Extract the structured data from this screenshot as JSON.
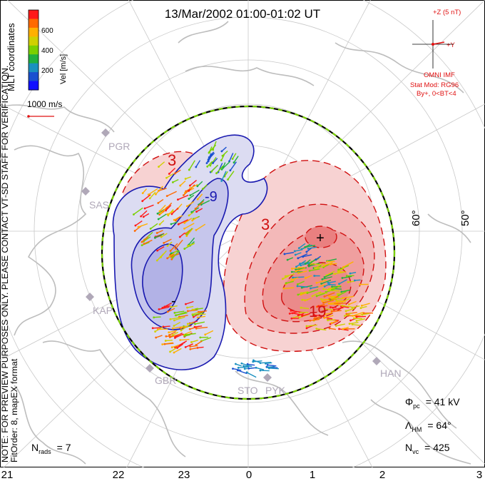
{
  "title": "13/Mar/2002 01:00-01:02 UT",
  "colorbar": {
    "unit_label": "Vel [m/s]",
    "tick_labels": [
      "600",
      "400",
      "200"
    ],
    "colors": [
      "#ff1a1a",
      "#ff6a00",
      "#ffb000",
      "#d0d000",
      "#7ad000",
      "#20b040",
      "#1a90c0",
      "#1a50d0",
      "#1010ff"
    ]
  },
  "coordinate_label": "MLT coordinates",
  "watermark_note": "NOTE: FOR PREVIEW PURPOSES ONLY. PLEASE CONTACT VT-SD STAFF FOR VERIFICATION.",
  "fit_info": "FitOrder: 8, mapEX format",
  "vector_scale_label": "1000 m/s",
  "imf": {
    "z_label": "+Z (5 nT)",
    "y_label": "+Y",
    "source": "OMNI IMF",
    "stat_model": "Stat Mod: RG96",
    "condition": "By+, 0<BT<4"
  },
  "latitude_labels": [
    "60°",
    "50°"
  ],
  "radar_sites": [
    "PGR",
    "SAS",
    "KAP",
    "GBR",
    "STO",
    "PYK",
    "HAN"
  ],
  "contour_labels": [
    "3",
    "-9",
    "3",
    "-",
    "+",
    "19"
  ],
  "stats": {
    "phi_pc": {
      "symbol": "Φ",
      "sub": "pc",
      "value": "= 41 kV"
    },
    "lambda_hm": {
      "symbol": "Λ",
      "sub": "HM",
      "value": "= 64°"
    },
    "n_vc": {
      "symbol": "N",
      "sub": "vc",
      "value": "= 425"
    },
    "n_rads": {
      "symbol": "N",
      "sub": "rads",
      "value": "= 7"
    }
  },
  "mlt_ticks": [
    "21",
    "22",
    "23",
    "0",
    "1",
    "2",
    "3"
  ]
}
